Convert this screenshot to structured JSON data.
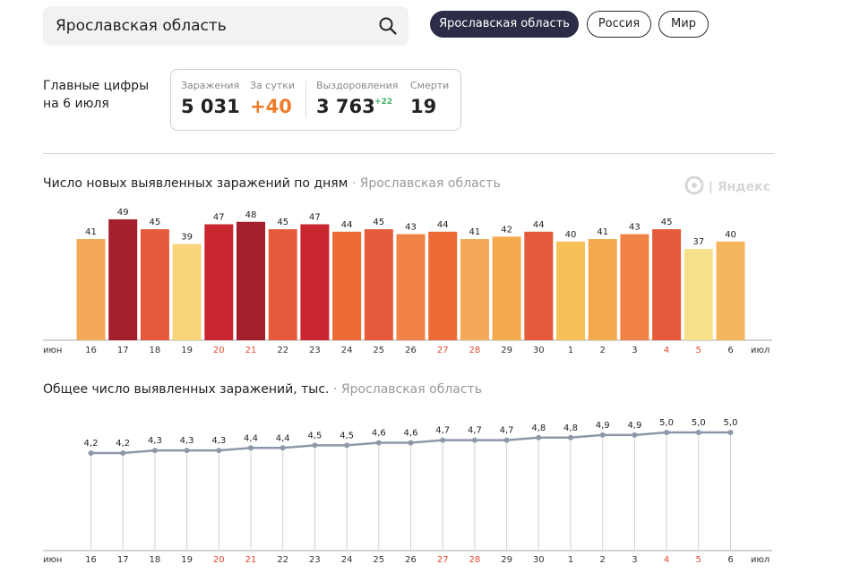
{
  "search": {
    "value": "Ярославская область"
  },
  "tabs": [
    {
      "label": "Ярославская область",
      "active": true
    },
    {
      "label": "Россия",
      "active": false
    },
    {
      "label": "Мир",
      "active": false
    }
  ],
  "main_figures": {
    "label_line1": "Главные цифры",
    "label_line2": "на 6 июля",
    "infections_label": "Заражения",
    "infections_value": "5 031",
    "daily_label": "За сутки",
    "daily_value": "+40",
    "recoveries_label": "Выздоровления",
    "recoveries_value": "3 763",
    "recoveries_delta": "+22",
    "deaths_label": "Смерти",
    "deaths_value": "19"
  },
  "watermark": "Яндекс",
  "chart_data": [
    {
      "type": "bar",
      "title": "Число новых выявленных заражений по дням",
      "region": "Ярославская область",
      "month_start": "июн",
      "month_end": "июл",
      "categories": [
        "16",
        "17",
        "18",
        "19",
        "20",
        "21",
        "22",
        "23",
        "24",
        "25",
        "26",
        "27",
        "28",
        "29",
        "30",
        "1",
        "2",
        "3",
        "4",
        "5",
        "6"
      ],
      "weekend_categories": [
        "20",
        "21",
        "27",
        "28",
        "4",
        "5"
      ],
      "values": [
        41,
        49,
        45,
        39,
        47,
        48,
        45,
        47,
        44,
        45,
        43,
        44,
        41,
        42,
        44,
        40,
        41,
        43,
        45,
        37,
        40
      ],
      "colors": [
        "#f3a85a",
        "#a31f2d",
        "#e55a3a",
        "#f8d57a",
        "#c9262f",
        "#a31f2d",
        "#e55a3a",
        "#c9262f",
        "#ee6a35",
        "#e55a3a",
        "#ef8244",
        "#ee6a35",
        "#f3a85a",
        "#f5a94d",
        "#e55a3a",
        "#f6c159",
        "#f5a94d",
        "#ef8244",
        "#e55a3a",
        "#f8df8a",
        "#f5b55c"
      ]
    },
    {
      "type": "line",
      "title": "Общее число выявленных заражений, тыс.",
      "region": "Ярославская область",
      "month_start": "июн",
      "month_end": "июл",
      "categories": [
        "16",
        "17",
        "18",
        "19",
        "20",
        "21",
        "22",
        "23",
        "24",
        "25",
        "26",
        "27",
        "28",
        "29",
        "30",
        "1",
        "2",
        "3",
        "4",
        "5",
        "6"
      ],
      "weekend_categories": [
        "20",
        "21",
        "27",
        "28",
        "4",
        "5"
      ],
      "values": [
        4.2,
        4.2,
        4.3,
        4.3,
        4.3,
        4.4,
        4.4,
        4.5,
        4.5,
        4.6,
        4.6,
        4.7,
        4.7,
        4.7,
        4.8,
        4.8,
        4.9,
        4.9,
        5.0,
        5.0,
        5.0
      ],
      "labels": [
        "4,2",
        "4,2",
        "4,3",
        "4,3",
        "4,3",
        "4,4",
        "4,4",
        "4,5",
        "4,5",
        "4,6",
        "4,6",
        "4,7",
        "4,7",
        "4,7",
        "4,8",
        "4,8",
        "4,9",
        "4,9",
        "5,0",
        "5,0",
        "5,0"
      ],
      "line_color": "#8e98ab"
    }
  ]
}
